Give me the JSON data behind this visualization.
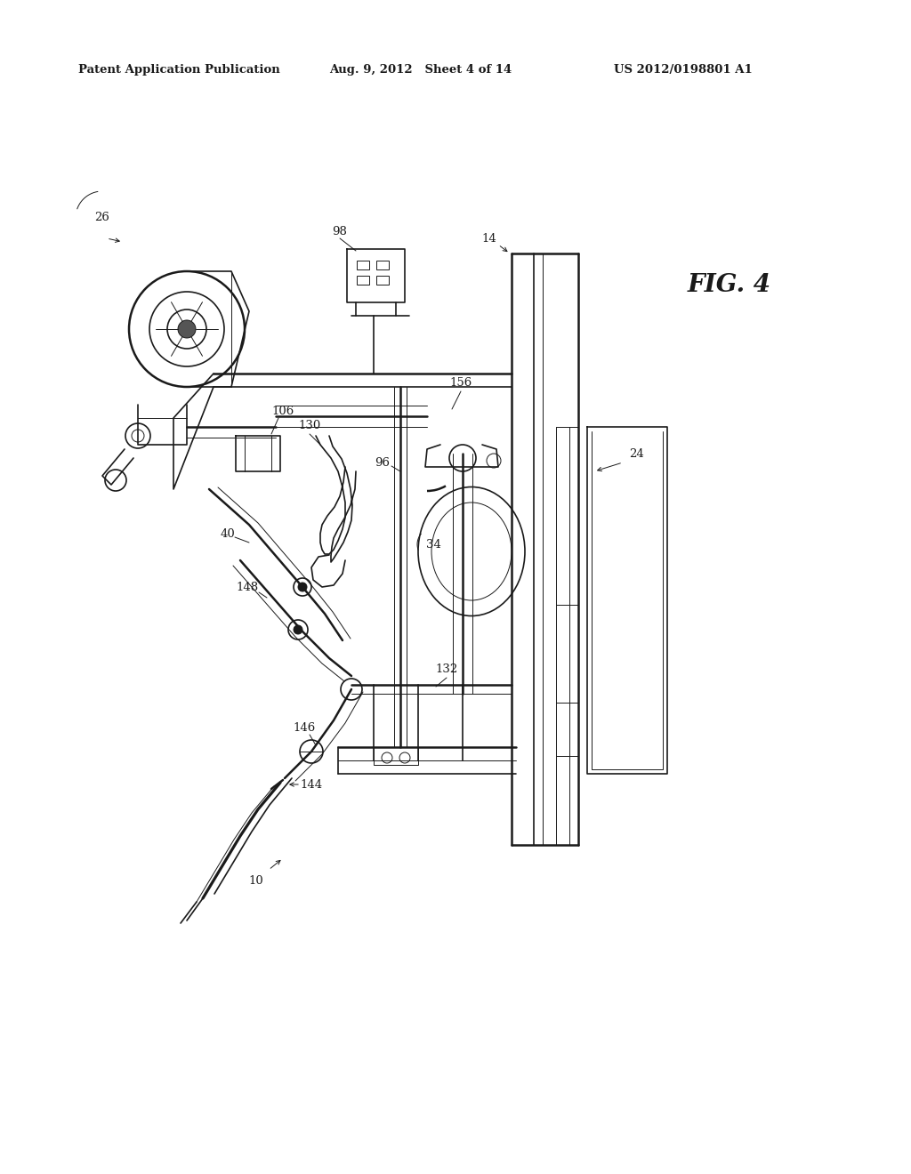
{
  "bg_color": "#ffffff",
  "line_color": "#1a1a1a",
  "header_left": "Patent Application Publication",
  "header_center": "Aug. 9, 2012   Sheet 4 of 14",
  "header_right": "US 2012/0198801 A1",
  "fig_label": "FIG. 4",
  "figsize": [
    10.24,
    13.2
  ],
  "dpi": 100,
  "lw_thick": 1.8,
  "lw_main": 1.2,
  "lw_thin": 0.7,
  "lw_hair": 0.5,
  "font_header": 9.5,
  "font_label": 9.5,
  "font_fig": 20
}
